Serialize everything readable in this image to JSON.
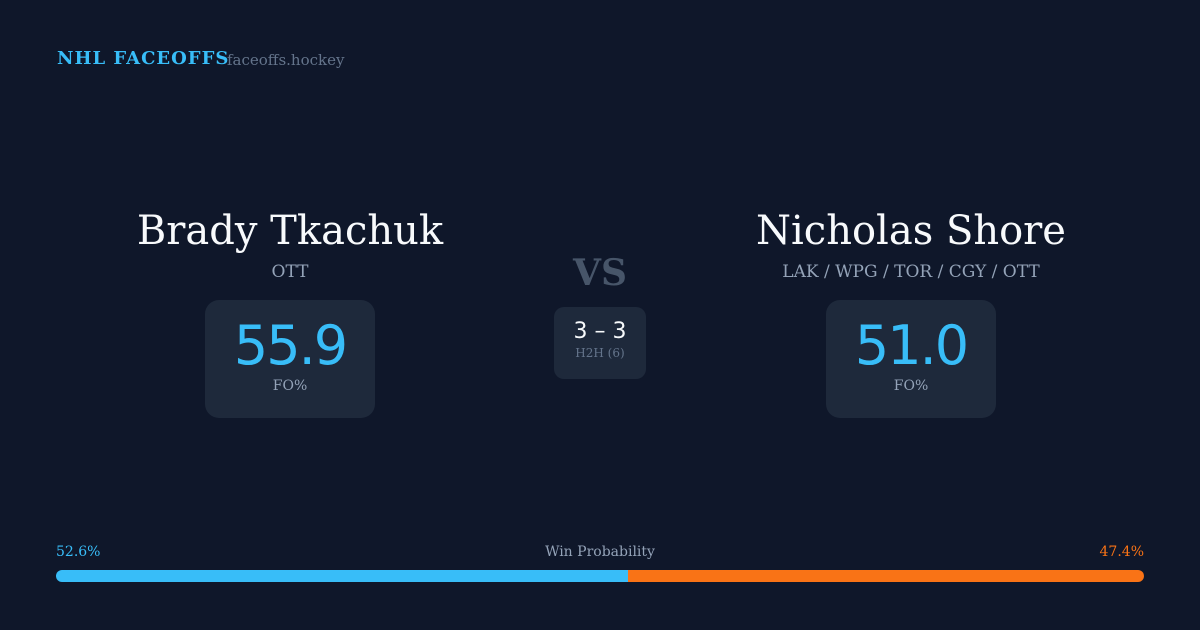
{
  "header": {
    "brand": "NHL FACEOFFS",
    "domain": "faceoffs.hockey"
  },
  "player1": {
    "name": "Brady Tkachuk",
    "team": "OTT",
    "fo_pct": "55.9",
    "fo_label": "FO%"
  },
  "player2": {
    "name": "Nicholas Shore",
    "team": "LAK / WPG / TOR / CGY / OTT",
    "fo_pct": "51.0",
    "fo_label": "FO%"
  },
  "vs": "VS",
  "h2h": {
    "score": "3 – 3",
    "label": "H2H (6)"
  },
  "win_probability": {
    "label": "Win Probability",
    "p1": "52.6%",
    "p2": "47.4%",
    "p1_value": 52.6,
    "colors": {
      "p1": "#38bdf8",
      "p2": "#f97316"
    }
  }
}
